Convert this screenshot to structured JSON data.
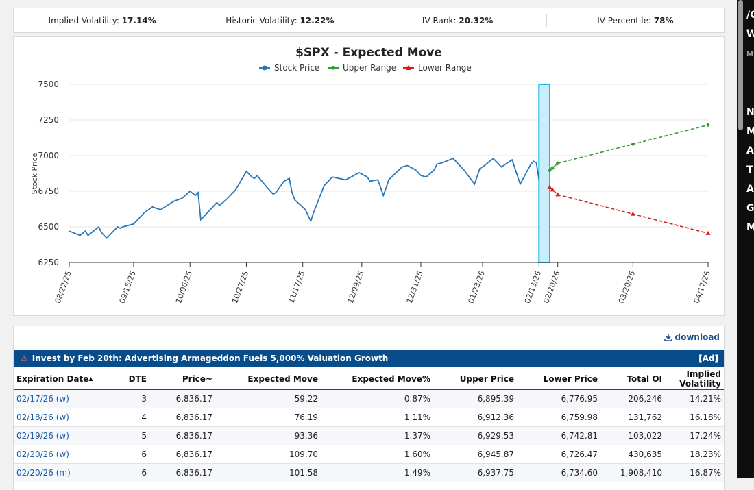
{
  "stats": {
    "iv_label": "Implied Volatility:",
    "iv_value": "17.14%",
    "hv_label": "Historic Volatility:",
    "hv_value": "12.22%",
    "ivr_label": "IV Rank:",
    "ivr_value": "20.32%",
    "ivp_label": "IV Percentile:",
    "ivp_value": "78%"
  },
  "chart_data": {
    "type": "line",
    "title": "$SPX - Expected Move",
    "ylabel": "Stock Price",
    "ylim": [
      6250,
      7500
    ],
    "yticks": [
      7500,
      7250,
      7000,
      6750,
      6500,
      6250
    ],
    "xticks": [
      "08/22/25",
      "09/15/25",
      "10/06/25",
      "10/27/25",
      "11/17/25",
      "12/09/25",
      "12/31/25",
      "01/23/26",
      "02/13/26",
      "02/20/26",
      "03/20/26",
      "04/17/26"
    ],
    "legend_position": "top-center",
    "grid": true,
    "series": [
      {
        "name": "Stock Price",
        "color": "#2a78b8",
        "x": [
          "2025-08-22",
          "2025-08-26",
          "2025-08-28",
          "2025-08-29",
          "2025-09-02",
          "2025-09-03",
          "2025-09-05",
          "2025-09-09",
          "2025-09-10",
          "2025-09-11",
          "2025-09-15",
          "2025-09-18",
          "2025-09-19",
          "2025-09-22",
          "2025-09-25",
          "2025-09-30",
          "2025-10-03",
          "2025-10-06",
          "2025-10-08",
          "2025-10-09",
          "2025-10-10",
          "2025-10-14",
          "2025-10-16",
          "2025-10-17",
          "2025-10-20",
          "2025-10-23",
          "2025-10-27",
          "2025-10-29",
          "2025-10-30",
          "2025-10-31",
          "2025-11-04",
          "2025-11-06",
          "2025-11-07",
          "2025-11-10",
          "2025-11-12",
          "2025-11-13",
          "2025-11-14",
          "2025-11-18",
          "2025-11-20",
          "2025-11-21",
          "2025-11-25",
          "2025-11-28",
          "2025-12-03",
          "2025-12-08",
          "2025-12-11",
          "2025-12-12",
          "2025-12-15",
          "2025-12-17",
          "2025-12-18",
          "2025-12-19",
          "2025-12-24",
          "2025-12-26",
          "2025-12-29",
          "2025-12-31",
          "2026-01-02",
          "2026-01-05",
          "2026-01-06",
          "2026-01-08",
          "2026-01-12",
          "2026-01-13",
          "2026-01-16",
          "2026-01-20",
          "2026-01-22",
          "2026-01-23",
          "2026-01-27",
          "2026-01-30",
          "2026-02-03",
          "2026-02-06",
          "2026-02-10",
          "2026-02-11",
          "2026-02-12",
          "2026-02-13"
        ],
        "y": [
          6470,
          6440,
          6470,
          6440,
          6500,
          6460,
          6420,
          6500,
          6490,
          6500,
          6520,
          6580,
          6600,
          6640,
          6620,
          6680,
          6700,
          6750,
          6720,
          6740,
          6550,
          6630,
          6670,
          6650,
          6700,
          6760,
          6890,
          6850,
          6840,
          6860,
          6770,
          6730,
          6740,
          6820,
          6840,
          6740,
          6690,
          6620,
          6540,
          6600,
          6790,
          6850,
          6830,
          6880,
          6850,
          6820,
          6830,
          6720,
          6770,
          6830,
          6920,
          6930,
          6900,
          6860,
          6850,
          6900,
          6940,
          6950,
          6980,
          6960,
          6900,
          6800,
          6910,
          6920,
          6980,
          6920,
          6970,
          6800,
          6940,
          6960,
          6950,
          6830
        ]
      },
      {
        "name": "Upper Range",
        "color": "#2e9e2e",
        "x": [
          "2026-02-17",
          "2026-02-18",
          "2026-02-20",
          "2026-03-20",
          "2026-04-17"
        ],
        "y": [
          6895.39,
          6912.36,
          6945.87,
          7080,
          7215
        ]
      },
      {
        "name": "Lower Range",
        "color": "#d62020",
        "x": [
          "2026-02-17",
          "2026-02-18",
          "2026-02-20",
          "2026-03-20",
          "2026-04-17"
        ],
        "y": [
          6776.95,
          6759.98,
          6726.47,
          6590,
          6455
        ]
      }
    ],
    "highlight_range": [
      "2026-02-13",
      "2026-02-17"
    ]
  },
  "table_panel": {
    "download_label": "download",
    "ad_text": "Invest by Feb 20th: Advertising Armageddon Fuels 5,000% Valuation Growth",
    "ad_tag": "[Ad]",
    "columns": [
      "Expiration Date",
      "DTE",
      "Price~",
      "Expected Move",
      "Expected Move%",
      "Upper Price",
      "Lower Price",
      "Total OI",
      "Implied Volatility"
    ],
    "rows": [
      [
        "02/17/26 (w)",
        "3",
        "6,836.17",
        "59.22",
        "0.87%",
        "6,895.39",
        "6,776.95",
        "206,246",
        "14.21%"
      ],
      [
        "02/18/26 (w)",
        "4",
        "6,836.17",
        "76.19",
        "1.11%",
        "6,912.36",
        "6,759.98",
        "131,762",
        "16.18%"
      ],
      [
        "02/19/26 (w)",
        "5",
        "6,836.17",
        "93.36",
        "1.37%",
        "6,929.53",
        "6,742.81",
        "103,022",
        "17.24%"
      ],
      [
        "02/20/26 (w)",
        "6",
        "6,836.17",
        "109.70",
        "1.60%",
        "6,945.87",
        "6,726.47",
        "430,635",
        "18.23%"
      ],
      [
        "02/20/26 (m)",
        "6",
        "6,836.17",
        "101.58",
        "1.49%",
        "6,937.75",
        "6,734.60",
        "1,908,410",
        "16.87%"
      ]
    ]
  },
  "right_sidebar": {
    "letters": [
      "/C",
      "W/",
      "M",
      "N",
      "M",
      "A",
      "T",
      "A",
      "G",
      "M"
    ]
  }
}
